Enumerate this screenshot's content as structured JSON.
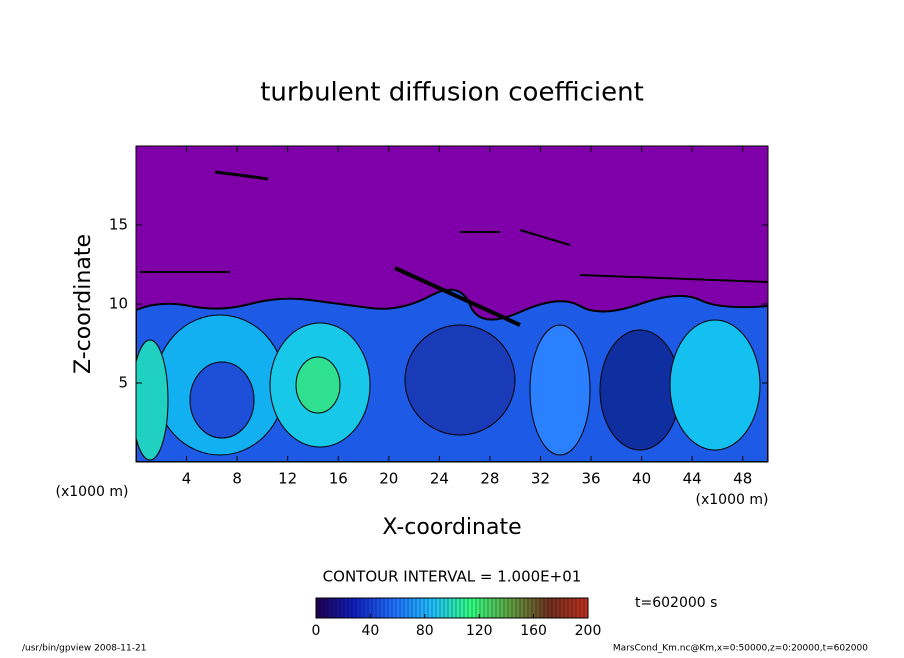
{
  "chart_data": {
    "type": "contour",
    "title": "turbulent diffusion coefficient",
    "x_label": "X-coordinate",
    "y_label": "Z-coordinate",
    "x_unit": "(x1000 m)",
    "y_unit": "(x1000 m)",
    "xlim": [
      0,
      50
    ],
    "xticks": [
      4,
      8,
      12,
      16,
      20,
      24,
      28,
      32,
      36,
      40,
      44,
      48
    ],
    "ylim": [
      0,
      20
    ],
    "yticks": [
      5,
      10,
      15
    ],
    "contour_interval": "CONTOUR INTERVAL = 1.000E+01",
    "time_label": "t=602000 s",
    "colorbar": {
      "range": [
        0,
        200
      ],
      "ticks": [
        0,
        40,
        80,
        120,
        160,
        200
      ],
      "colors": [
        "#200050",
        "#1020c0",
        "#2070ff",
        "#20c0ff",
        "#30ff80",
        "#60a040",
        "#703020",
        "#c03020"
      ]
    },
    "footer_left": "/usr/bin/gpview  2008-11-21",
    "footer_right": "MarsCond_Km.nc@Km,x=0:50000,z=0:20000,t=602000"
  }
}
